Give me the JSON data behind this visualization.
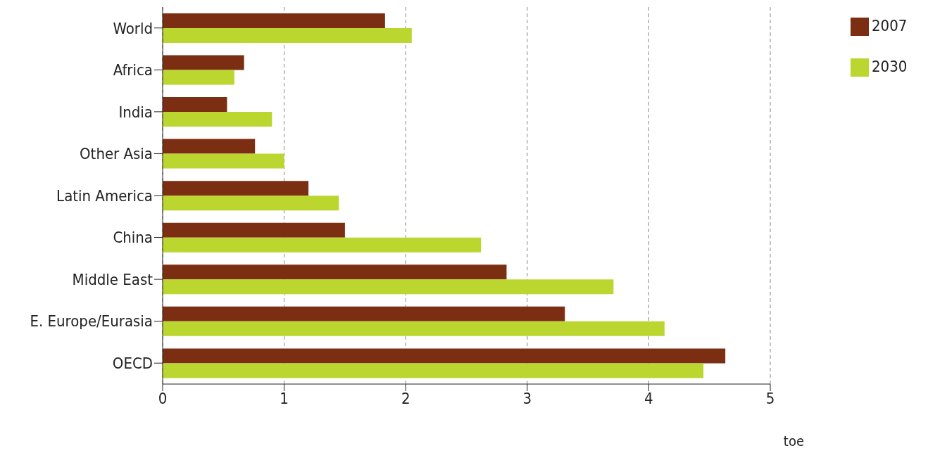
{
  "chart_data": {
    "type": "bar",
    "orientation": "horizontal",
    "xlabel": "toe",
    "categories": [
      "World",
      "Africa",
      "India",
      "Other Asia",
      "Latin America",
      "China",
      "Middle East",
      "E. Europe/Eurasia",
      "OECD"
    ],
    "series": [
      {
        "name": "2007",
        "color": "#7b2e12",
        "values": [
          1.83,
          0.67,
          0.53,
          0.76,
          1.2,
          1.5,
          2.83,
          3.31,
          4.63
        ]
      },
      {
        "name": "2030",
        "color": "#bcd630",
        "values": [
          2.05,
          0.59,
          0.9,
          1.0,
          1.45,
          2.62,
          3.71,
          4.13,
          4.45
        ]
      }
    ],
    "xlim": [
      0,
      5
    ],
    "xticks": [
      0,
      1,
      2,
      3,
      4,
      5
    ],
    "grid": "x",
    "legend": "top right"
  }
}
